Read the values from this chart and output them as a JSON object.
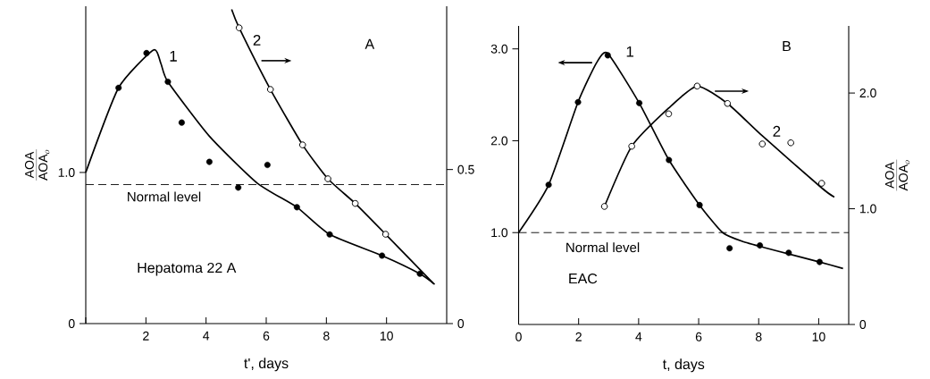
{
  "chart_data": [
    {
      "type": "scatter",
      "xlabel": "t', days",
      "ylabel": "\\frac{\\mathrm{AOA}}{\\mathrm{AOA}_{o}}",
      "annotations": [
        "A",
        "Hepatoma 22 A"
      ],
      "xlim": [
        0,
        12
      ],
      "xticks": [
        {
          "value": 0,
          "label": null
        },
        2,
        4,
        6,
        8,
        10
      ],
      "ylim": [
        0,
        2.1
      ],
      "yticks": [
        0,
        {
          "value": 1,
          "label": "1.0"
        }
      ],
      "y2lim": [
        0,
        1.03
      ],
      "y2ticks": [
        0,
        {
          "value": 0.5,
          "label": "0.5"
        }
      ],
      "ref_lines": [
        {
          "axis": "y",
          "value": 0.92,
          "label": "Normal level",
          "line_style": "dashed",
          "color": "#000000"
        }
      ],
      "series": [
        {
          "type": "line",
          "color": "#000000",
          "x": [
            0,
            1.09,
            2.25,
            2.5,
            2.73,
            4.11,
            5.7,
            7.02,
            8.11,
            9.85,
            11.11,
            11.6
          ],
          "values": [
            1.0,
            1.56,
            1.81,
            1.72,
            1.6,
            1.24,
            0.93,
            0.77,
            0.59,
            0.45,
            0.33,
            0.26
          ]
        },
        {
          "name": "1",
          "color": "#000000",
          "marker": "circle",
          "x": [
            1.09,
            2.02,
            2.73,
            3.19,
            4.11,
            5.07,
            6.04,
            7.02,
            8.11,
            9.85,
            11.11
          ],
          "values": [
            1.56,
            1.79,
            1.6,
            1.33,
            1.07,
            0.9,
            1.05,
            0.77,
            0.59,
            0.45,
            0.33
          ]
        },
        {
          "type": "line",
          "axis": "y2",
          "color": "#000000",
          "x": [
            4.85,
            5.1,
            6.14,
            7.21,
            8.05,
            8.96,
            9.97,
            11.56
          ],
          "values": [
            1.02,
            0.96,
            0.76,
            0.58,
            0.47,
            0.39,
            0.29,
            0.13
          ]
        },
        {
          "name": "2",
          "axis": "y2",
          "color": "#000000",
          "marker": "circle",
          "x": [
            5.1,
            6.14,
            7.21,
            8.05,
            8.96,
            9.97
          ],
          "values": [
            0.96,
            0.76,
            0.58,
            0.47,
            0.39,
            0.29
          ]
        }
      ]
    },
    {
      "type": "scatter",
      "xlabel": "t, days",
      "y2label": "\\frac{\\mathrm{AOA}}{\\mathrm{AOA}_{o}}",
      "annotations": [
        "B",
        "EAC"
      ],
      "xlim": [
        0,
        11
      ],
      "xticks": [
        0,
        2,
        4,
        6,
        8,
        10
      ],
      "ylim": [
        0,
        3.25
      ],
      "yticks": [
        {
          "value": 1,
          "label": "1.0"
        },
        {
          "value": 2,
          "label": "2.0"
        },
        {
          "value": 3,
          "label": "3.0"
        }
      ],
      "y2lim": [
        0,
        2.58
      ],
      "y2ticks": [
        0,
        {
          "value": 1,
          "label": "1.0"
        },
        {
          "value": 2,
          "label": "2.0"
        }
      ],
      "ref_lines": [
        {
          "axis": "y",
          "value": 1.0,
          "label": "Normal level",
          "line_style": "dashed",
          "color": "#000000"
        }
      ],
      "series": [
        {
          "type": "line",
          "color": "#000000",
          "x": [
            0,
            1.0,
            1.98,
            2.6,
            2.97,
            4.02,
            5.01,
            6.03,
            6.8,
            7.5,
            8.5,
            10.03,
            10.81
          ],
          "values": [
            1.0,
            1.52,
            2.42,
            2.85,
            2.95,
            2.41,
            1.79,
            1.3,
            1.0,
            0.9,
            0.81,
            0.68,
            0.61
          ]
        },
        {
          "name": "1",
          "color": "#000000",
          "marker": "circle",
          "x": [
            1.0,
            1.98,
            2.97,
            4.02,
            5.01,
            6.03,
            7.03,
            8.04,
            9.0,
            10.03
          ],
          "values": [
            1.52,
            2.42,
            2.93,
            2.41,
            1.79,
            1.3,
            0.83,
            0.86,
            0.78,
            0.68
          ]
        },
        {
          "type": "line",
          "axis": "y2",
          "color": "#000000",
          "x": [
            2.86,
            3.77,
            5.0,
            5.95,
            6.96,
            8.12,
            10.1,
            10.52
          ],
          "values": [
            1.02,
            1.54,
            1.87,
            2.06,
            1.91,
            1.63,
            1.18,
            1.1
          ]
        },
        {
          "name": "2",
          "axis": "y2",
          "color": "#000000",
          "marker": "circle",
          "x": [
            2.86,
            3.77,
            5.0,
            5.95,
            6.96,
            8.12,
            9.07,
            10.1
          ],
          "values": [
            1.02,
            1.54,
            1.82,
            2.06,
            1.91,
            1.56,
            1.57,
            1.22
          ]
        }
      ]
    }
  ]
}
